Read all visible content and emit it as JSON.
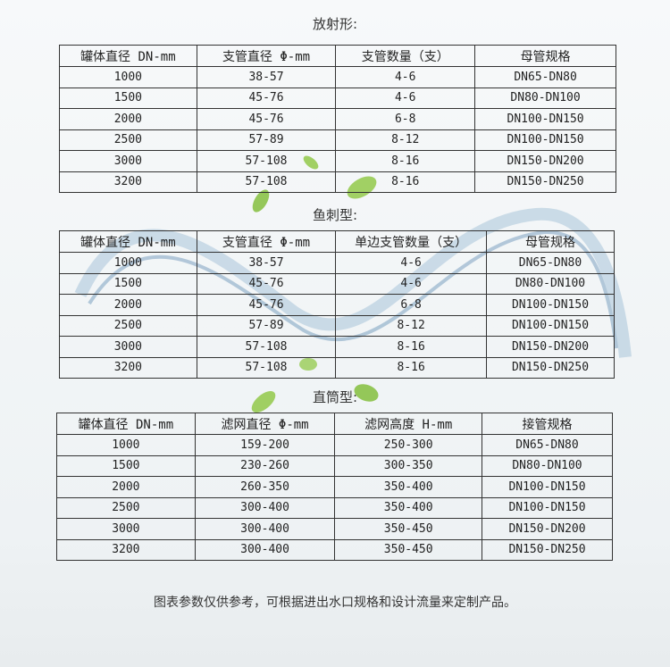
{
  "sections": [
    {
      "title": "放射形:",
      "headers": [
        "罐体直径 DN-mm",
        "支管直径 Φ-mm",
        "支管数量（支）",
        "母管规格"
      ],
      "rows": [
        [
          "1000",
          "38-57",
          "4-6",
          "DN65-DN80"
        ],
        [
          "1500",
          "45-76",
          "4-6",
          "DN80-DN100"
        ],
        [
          "2000",
          "45-76",
          "6-8",
          "DN100-DN150"
        ],
        [
          "2500",
          "57-89",
          "8-12",
          "DN100-DN150"
        ],
        [
          "3000",
          "57-108",
          "8-16",
          "DN150-DN200"
        ],
        [
          "3200",
          "57-108",
          "8-16",
          "DN150-DN250"
        ]
      ]
    },
    {
      "title": "鱼刺型:",
      "headers": [
        "罐体直径 DN-mm",
        "支管直径 Φ-mm",
        "单边支管数量（支）",
        "母管规格"
      ],
      "rows": [
        [
          "1000",
          "38-57",
          "4-6",
          "DN65-DN80"
        ],
        [
          "1500",
          "45-76",
          "4-6",
          "DN80-DN100"
        ],
        [
          "2000",
          "45-76",
          "6-8",
          "DN100-DN150"
        ],
        [
          "2500",
          "57-89",
          "8-12",
          "DN100-DN150"
        ],
        [
          "3000",
          "57-108",
          "8-16",
          "DN150-DN200"
        ],
        [
          "3200",
          "57-108",
          "8-16",
          "DN150-DN250"
        ]
      ]
    },
    {
      "title": "直筒型:",
      "headers": [
        "罐体直径 DN-mm",
        "滤网直径 Φ-mm",
        "滤网高度 H-mm",
        "接管规格"
      ],
      "rows": [
        [
          "1000",
          "159-200",
          "250-300",
          "DN65-DN80"
        ],
        [
          "1500",
          "230-260",
          "300-350",
          "DN80-DN100"
        ],
        [
          "2000",
          "260-350",
          "350-400",
          "DN100-DN150"
        ],
        [
          "2500",
          "300-400",
          "350-400",
          "DN100-DN150"
        ],
        [
          "3000",
          "300-400",
          "350-450",
          "DN150-DN200"
        ],
        [
          "3200",
          "300-400",
          "350-450",
          "DN150-DN250"
        ]
      ]
    }
  ],
  "footer": "图表参数仅供参考，可根据进出水口规格和设计流量来定制产品。"
}
